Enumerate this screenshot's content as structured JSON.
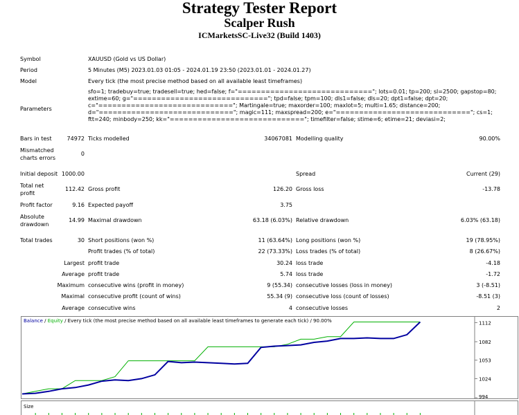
{
  "header": {
    "title": "Strategy Tester Report",
    "expert": "Scalper Rush",
    "server": "ICMarketsSC-Live32 (Build 1403)"
  },
  "settings": {
    "symbol_label": "Symbol",
    "symbol": "XAUUSD (Gold vs US Dollar)",
    "period_label": "Period",
    "period": "5 Minutes (M5) 2023.01.03 01:05 - 2024.01.19 23:50 (2023.01.01 - 2024.01.27)",
    "model_label": "Model",
    "model": "Every tick (the most precise method based on all available least timeframes)",
    "parameters_label": "Parameters",
    "parameters": [
      "sfo=1; tradebuy=true; tradesell=true; hed=false; f=\"=============================\"; lots=0.01; tp=200; sl=2500; gapstop=80;",
      "extime=60; g=\"=============================\"; tpd=false; tpm=100; dls1=false; dls=20; dpt1=false; dpt=20;",
      "c=\"=============================\"; Martingale=true; maxorder=100; maxlot=5; multi=1.65; distance=200;",
      "d=\"=============================\"; magic=111; maxspread=200; e=\"=============================\"; cs=1;",
      "ftt=240; minbody=250; kk=\"=============================\"; timefilter=false; stime=6; etime=21; deviasi=2;"
    ]
  },
  "quality": {
    "bars_label": "Bars in test",
    "bars": "74972",
    "ticks_label": "Ticks modelled",
    "ticks": "34067081",
    "modelling_label": "Modelling quality",
    "modelling": "90.00%",
    "mismatched_label": "Mismatched charts errors",
    "mismatched": "0"
  },
  "results": {
    "deposit_label": "Initial deposit",
    "deposit": "1000.00",
    "spread_label": "Spread",
    "spread": "Current (29)",
    "net_label": "Total net profit",
    "net": "112.42",
    "gross_profit_label": "Gross profit",
    "gross_profit": "126.20",
    "gross_loss_label": "Gross loss",
    "gross_loss": "-13.78",
    "pf_label": "Profit factor",
    "pf": "9.16",
    "payoff_label": "Expected payoff",
    "payoff": "3.75",
    "abs_dd_label": "Absolute drawdown",
    "abs_dd": "14.99",
    "max_dd_label": "Maximal drawdown",
    "max_dd": "63.18 (6.03%)",
    "rel_dd_label": "Relative drawdown",
    "rel_dd": "6.03% (63.18)",
    "total_label": "Total trades",
    "total": "30",
    "short_label": "Short positions (won %)",
    "short": "11 (63.64%)",
    "long_label": "Long positions (won %)",
    "long": "19 (78.95%)",
    "profit_trades_label": "Profit trades (% of total)",
    "profit_trades": "22 (73.33%)",
    "loss_trades_label": "Loss trades (% of total)",
    "loss_trades": "8 (26.67%)"
  },
  "trade_stats": [
    {
      "prefix": "Largest",
      "label": "profit trade",
      "value": "30.24",
      "label2": "loss trade",
      "value2": "-4.18"
    },
    {
      "prefix": "Average",
      "label": "profit trade",
      "value": "5.74",
      "label2": "loss trade",
      "value2": "-1.72"
    },
    {
      "prefix": "Maximum",
      "label": "consecutive wins (profit in money)",
      "value": "9 (55.34)",
      "label2": "consecutive losses (loss in money)",
      "value2": "3 (-8.51)"
    },
    {
      "prefix": "Maximal",
      "label": "consecutive profit (count of wins)",
      "value": "55.34 (9)",
      "label2": "consecutive loss (count of losses)",
      "value2": "-8.51 (3)"
    },
    {
      "prefix": "Average",
      "label": "consecutive wins",
      "value": "4",
      "label2": "consecutive losses",
      "value2": "2"
    }
  ],
  "chart_data": {
    "type": "line",
    "legend": {
      "balance": "Balance",
      "separator": " / ",
      "equity": "Equity",
      "text": " / Every tick (the most precise method based on all available least timeframes to generate each tick) / 90.00%"
    },
    "x": [
      0,
      1,
      2,
      3,
      4,
      5,
      6,
      7,
      8,
      9,
      10,
      11,
      12,
      13,
      14,
      15,
      16,
      17,
      18,
      19,
      20,
      21,
      22,
      23,
      24,
      25,
      26,
      27,
      28,
      29,
      30
    ],
    "xlim": [
      0,
      34
    ],
    "ylim": [
      994,
      1119
    ],
    "y_ticks": [
      "1112",
      "1082",
      "1053",
      "1024",
      "994"
    ],
    "y_tick_values": [
      1112,
      1082,
      1053,
      1024,
      994
    ],
    "colors": {
      "balance": "#0000a0",
      "equity": "#00b000"
    },
    "series": [
      {
        "name": "Balance",
        "values": [
          1000,
          1001,
          1004,
          1008,
          1010,
          1014,
          1020,
          1022,
          1021,
          1024,
          1030,
          1051,
          1049,
          1050,
          1049,
          1048,
          1047,
          1048,
          1073,
          1075,
          1076,
          1077,
          1081,
          1083,
          1087,
          1087,
          1088,
          1087,
          1087,
          1093,
          1113
        ]
      },
      {
        "name": "Equity",
        "values": [
          1000,
          1004,
          1008,
          1008,
          1021,
          1021,
          1021,
          1027,
          1052,
          1052,
          1052,
          1052,
          1052,
          1052,
          1074,
          1074,
          1074,
          1074,
          1074,
          1074,
          1078,
          1086,
          1086,
          1090,
          1090,
          1113,
          1113,
          1113,
          1113,
          1113,
          1113
        ]
      }
    ]
  },
  "size_panel": {
    "label": "Size"
  },
  "colors": {
    "balance": "#0000a0",
    "equity": "#00b000",
    "frame": "#808080"
  }
}
